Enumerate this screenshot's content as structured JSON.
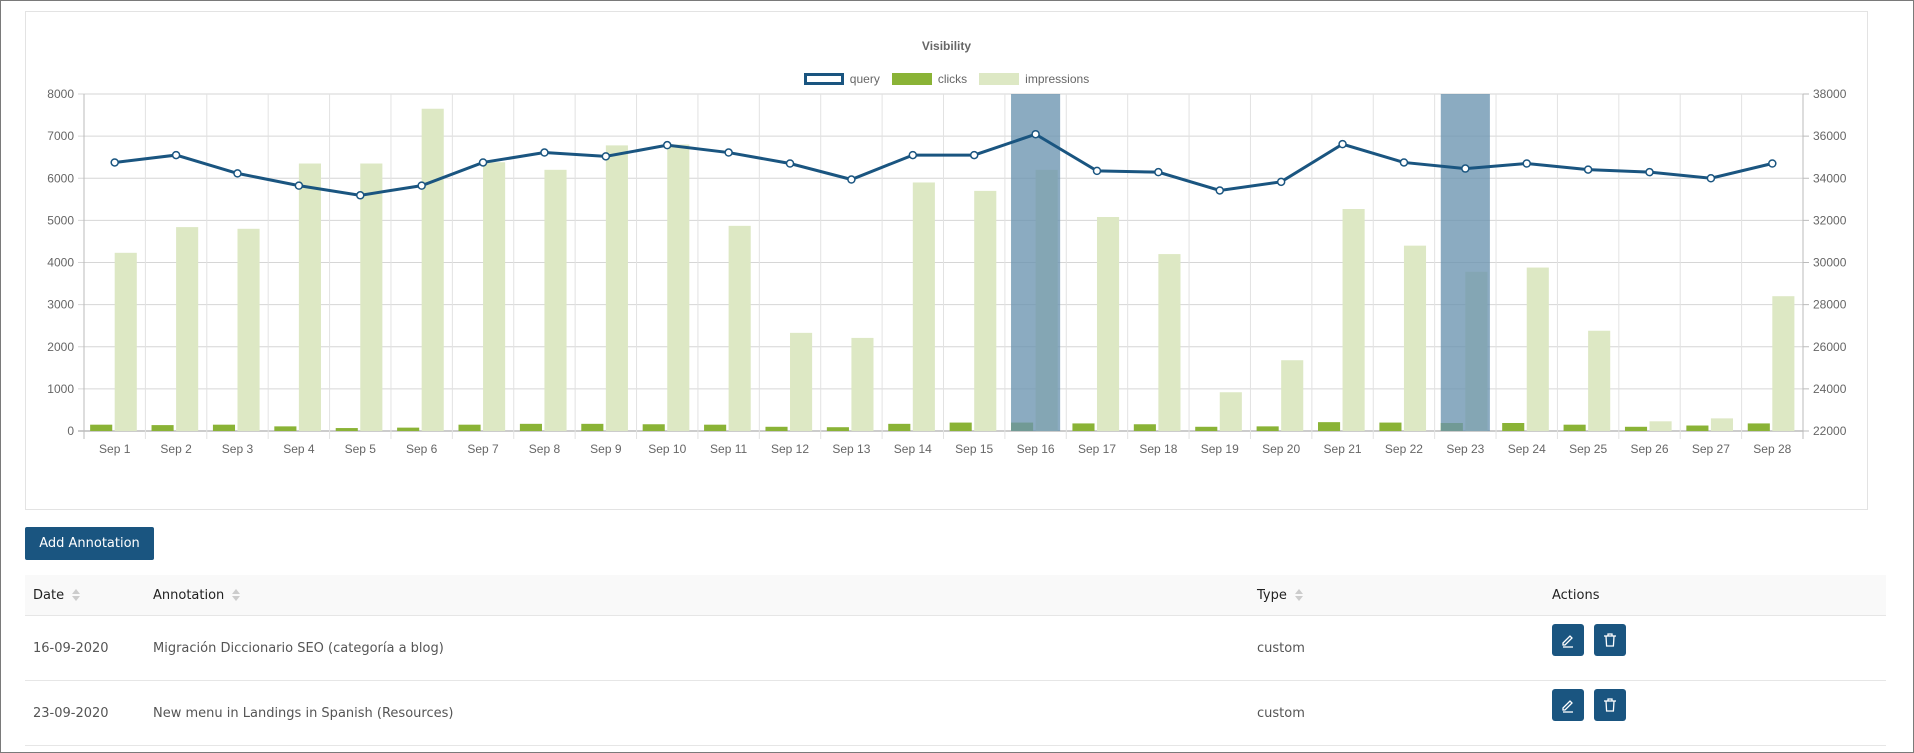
{
  "chart": {
    "title": "Visibility",
    "legend": [
      {
        "label": "query",
        "color": "#1a5580",
        "style": "outline"
      },
      {
        "label": "clicks",
        "color": "#8ab336",
        "style": "fill"
      },
      {
        "label": "impressions",
        "color": "#dde8c4",
        "style": "fill"
      }
    ],
    "left_ticks": [
      "0",
      "1000",
      "2000",
      "3000",
      "4000",
      "5000",
      "6000",
      "7000",
      "8000"
    ],
    "right_ticks": [
      "22000",
      "24000",
      "26000",
      "28000",
      "30000",
      "32000",
      "34000",
      "36000",
      "38000"
    ],
    "highlight_color": "#6a94b0"
  },
  "chart_data": {
    "type": "bar",
    "title": "Visibility",
    "xlabel": "",
    "ylabel": "",
    "categories": [
      "Sep 1",
      "Sep 2",
      "Sep 3",
      "Sep 4",
      "Sep 5",
      "Sep 6",
      "Sep 7",
      "Sep 8",
      "Sep 9",
      "Sep 10",
      "Sep 11",
      "Sep 12",
      "Sep 13",
      "Sep 14",
      "Sep 15",
      "Sep 16",
      "Sep 17",
      "Sep 18",
      "Sep 19",
      "Sep 20",
      "Sep 21",
      "Sep 22",
      "Sep 23",
      "Sep 24",
      "Sep 25",
      "Sep 26",
      "Sep 27",
      "Sep 28"
    ],
    "series": [
      {
        "name": "query",
        "type": "line",
        "axis": "right",
        "values": [
          34750,
          35100,
          34230,
          33650,
          33190,
          33650,
          34750,
          35220,
          35040,
          35570,
          35220,
          34700,
          33940,
          35100,
          35100,
          36090,
          34350,
          34290,
          33420,
          33830,
          35620,
          34750,
          34460,
          34700,
          34410,
          34290,
          34000,
          34700
        ]
      },
      {
        "name": "clicks",
        "type": "bar",
        "axis": "left",
        "values": [
          150,
          140,
          150,
          110,
          70,
          80,
          150,
          170,
          170,
          160,
          150,
          100,
          90,
          170,
          200,
          200,
          180,
          160,
          100,
          110,
          210,
          200,
          190,
          190,
          150,
          100,
          130,
          180
        ]
      },
      {
        "name": "impressions",
        "type": "bar",
        "axis": "left",
        "values": [
          4230,
          4840,
          4800,
          6350,
          6350,
          7650,
          6380,
          6200,
          6780,
          6800,
          4870,
          2330,
          2210,
          5900,
          5700,
          6200,
          5080,
          4200,
          920,
          1680,
          5270,
          4400,
          3780,
          3880,
          2380,
          230,
          300,
          3200
        ]
      }
    ],
    "ylim": [
      0,
      8000
    ],
    "y2lim": [
      22000,
      38000
    ],
    "highlighted_categories": [
      "Sep 16",
      "Sep 23"
    ],
    "grid": true,
    "legend_position": "top"
  },
  "toolbar": {
    "add_annotation_label": "Add Annotation"
  },
  "table": {
    "headers": {
      "date": "Date",
      "annotation": "Annotation",
      "type": "Type",
      "actions": "Actions"
    },
    "rows": [
      {
        "date": "16-09-2020",
        "annotation": "Migración Diccionario SEO (categoría a blog)",
        "type": "custom"
      },
      {
        "date": "23-09-2020",
        "annotation": "New menu in Landings in Spanish (Resources)",
        "type": "custom"
      }
    ]
  }
}
